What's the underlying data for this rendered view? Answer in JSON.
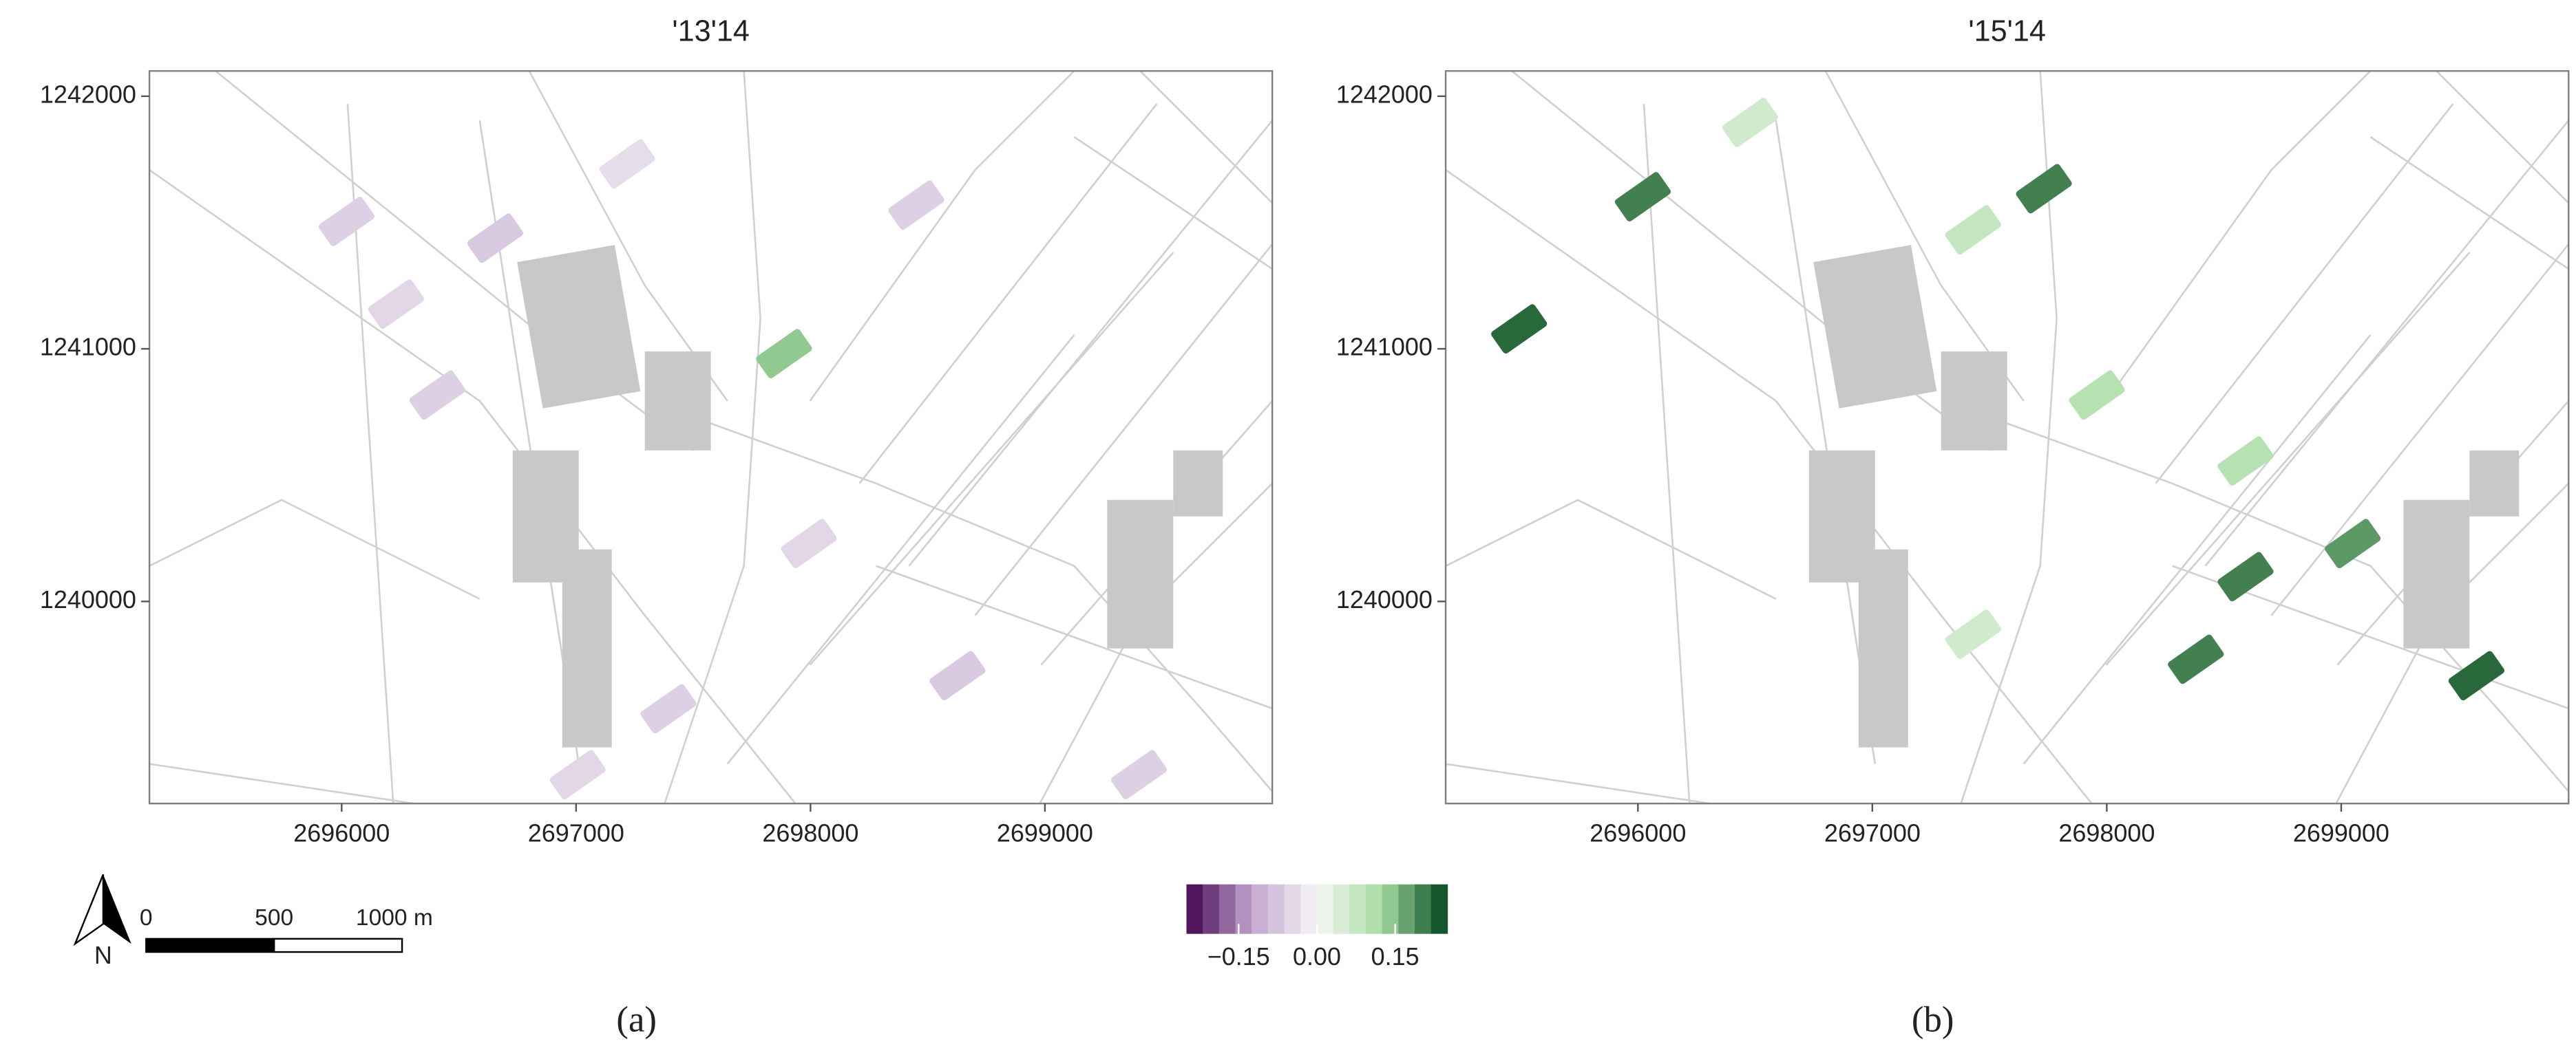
{
  "panels": [
    {
      "title": "'13'14",
      "label": "(a)",
      "xlim": [
        2695180,
        2699970
      ],
      "ylim": [
        1239200,
        1242100
      ],
      "xticks": [
        2696000,
        2697000,
        2698000,
        2699000
      ],
      "yticks": [
        1240000,
        1241000,
        1242000
      ],
      "fields": [
        {
          "x": 2696408,
          "y": 1240817,
          "value": -0.06
        },
        {
          "x": 2696232,
          "y": 1241177,
          "value": -0.05
        },
        {
          "x": 2696021,
          "y": 1241504,
          "value": -0.06
        },
        {
          "x": 2696655,
          "y": 1241438,
          "value": -0.07
        },
        {
          "x": 2697218,
          "y": 1241732,
          "value": -0.04
        },
        {
          "x": 2697993,
          "y": 1240229,
          "value": -0.05
        },
        {
          "x": 2697394,
          "y": 1239575,
          "value": -0.06
        },
        {
          "x": 2698627,
          "y": 1239706,
          "value": -0.07
        },
        {
          "x": 2699401,
          "y": 1239314,
          "value": -0.06
        },
        {
          "x": 2697887,
          "y": 1240981,
          "value": 0.14
        },
        {
          "x": 2698451,
          "y": 1241569,
          "value": -0.06
        },
        {
          "x": 2697007,
          "y": 1239314,
          "value": -0.05
        }
      ]
    },
    {
      "title": "'15'14",
      "label": "(b)",
      "xlim": [
        2695180,
        2699970
      ],
      "ylim": [
        1239200,
        1242100
      ],
      "xticks": [
        2696000,
        2697000,
        2698000,
        2699000
      ],
      "yticks": [
        1240000,
        1241000,
        1242000
      ],
      "fields": [
        {
          "x": 2697732,
          "y": 1241634,
          "value": 0.2
        },
        {
          "x": 2696021,
          "y": 1241602,
          "value": 0.2
        },
        {
          "x": 2695493,
          "y": 1241079,
          "value": 0.22
        },
        {
          "x": 2697958,
          "y": 1240817,
          "value": 0.1
        },
        {
          "x": 2698592,
          "y": 1240098,
          "value": 0.2
        },
        {
          "x": 2699577,
          "y": 1239706,
          "value": 0.22
        },
        {
          "x": 2698592,
          "y": 1240556,
          "value": 0.1
        },
        {
          "x": 2697430,
          "y": 1241471,
          "value": 0.08
        },
        {
          "x": 2697430,
          "y": 1239870,
          "value": 0.06
        },
        {
          "x": 2698380,
          "y": 1239771,
          "value": 0.2
        },
        {
          "x": 2699049,
          "y": 1240229,
          "value": 0.18
        },
        {
          "x": 2696479,
          "y": 1241896,
          "value": 0.06
        }
      ]
    }
  ],
  "scale_bar": {
    "ticks": [
      0,
      500,
      {
        "value": 1000,
        "label": "1000 m"
      }
    ]
  },
  "north": "N",
  "colorbar": {
    "limits": [
      -0.25,
      0.25
    ],
    "ticks": [
      {
        "value": -0.15,
        "label": "−0.15"
      },
      {
        "value": 0,
        "label": "0.00"
      },
      0.15
    ]
  }
}
